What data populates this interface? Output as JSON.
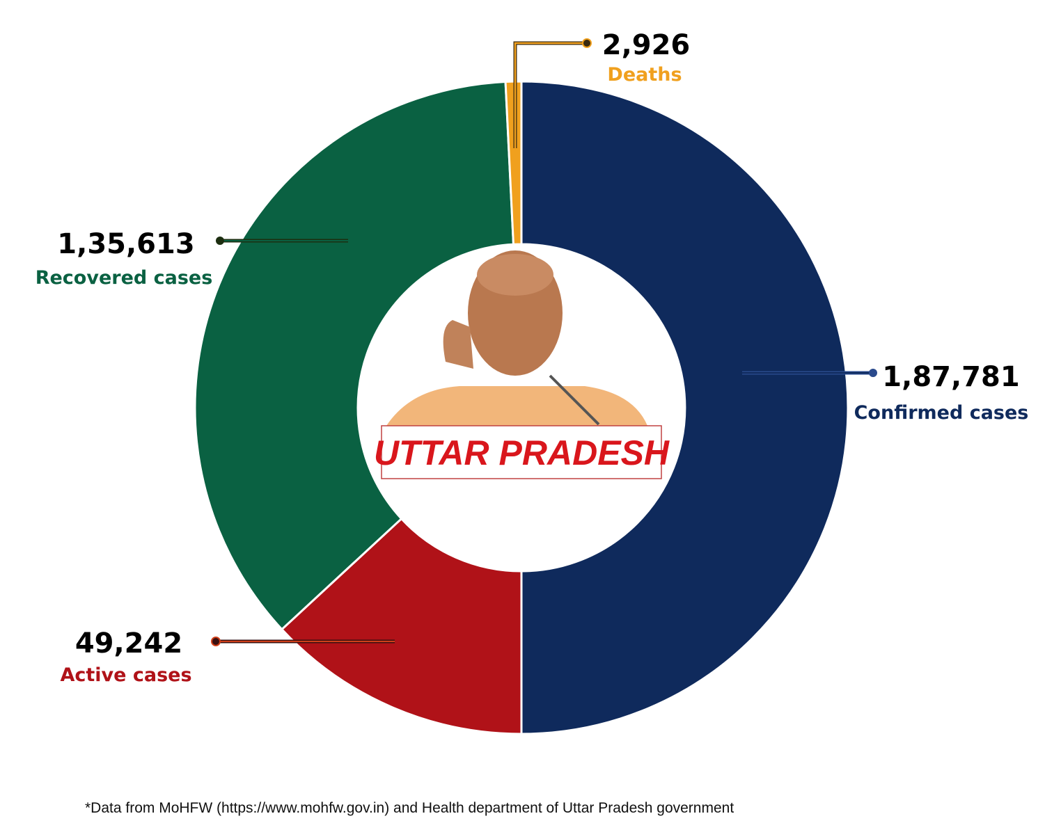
{
  "chart_data": {
    "type": "pie",
    "subtype": "donut",
    "center_title": "UTTAR PRADESH",
    "slices": [
      {
        "label": "Confirmed cases",
        "value": 187781,
        "display": "1,87,781",
        "color": "#0f2a5c"
      },
      {
        "label": "Active cases",
        "value": 49242,
        "display": "49,242",
        "color": "#b01218"
      },
      {
        "label": "Recovered cases",
        "value": 135613,
        "display": "1,35,613",
        "color": "#0a6142"
      },
      {
        "label": "Deaths",
        "value": 2926,
        "display": "2,926",
        "color": "#f0a01e"
      }
    ],
    "footnote": "*Data from MoHFW (https://www.mohfw.gov.in) and Health department of Uttar Pradesh government"
  }
}
